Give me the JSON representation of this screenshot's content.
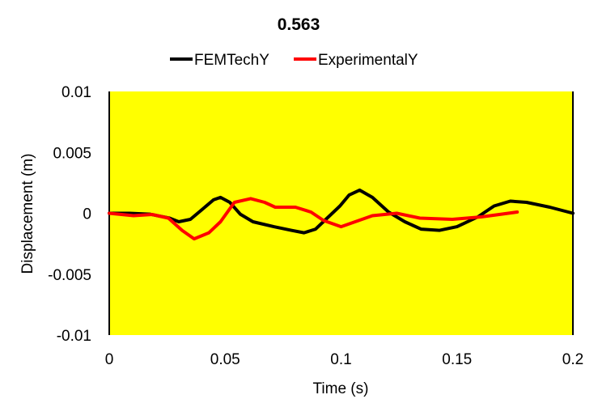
{
  "chart_data": {
    "type": "line",
    "title": "0.563",
    "xlabel": "Time (s)",
    "ylabel": "Displacement (m)",
    "xlim": [
      0,
      0.2
    ],
    "ylim": [
      -0.01,
      0.01
    ],
    "xticks": [
      "0",
      "0.05",
      "0.1",
      "0.15",
      "0.2"
    ],
    "yticks": [
      "0.01",
      "0.005",
      "0",
      "-0.005",
      "-0.01"
    ],
    "xtick_values": [
      0,
      0.05,
      0.1,
      0.15,
      0.2
    ],
    "ytick_values": [
      0.01,
      0.005,
      0,
      -0.005,
      -0.01
    ],
    "grid": false,
    "legend_position": "top",
    "plot_background": "#FFFF00",
    "series": [
      {
        "name": "FEMTechY",
        "color": "#000000",
        "x": [
          0,
          0.0087,
          0.0175,
          0.026,
          0.03,
          0.035,
          0.04,
          0.045,
          0.048,
          0.052,
          0.0565,
          0.062,
          0.071,
          0.0785,
          0.084,
          0.089,
          0.094,
          0.0995,
          0.1035,
          0.108,
          0.1135,
          0.1205,
          0.1275,
          0.1345,
          0.1425,
          0.15,
          0.159,
          0.166,
          0.173,
          0.18,
          0.19,
          0.2
        ],
        "y": [
          0,
          0,
          -7e-05,
          -0.0004,
          -0.0007,
          -0.0005,
          0.0003,
          0.0011,
          0.0013,
          0.0009,
          -7e-05,
          -0.0007,
          -0.0011,
          -0.0014,
          -0.0016,
          -0.0013,
          -0.0004,
          0.0006,
          0.0015,
          0.0019,
          0.0013,
          0.0001,
          -0.0007,
          -0.0013,
          -0.0014,
          -0.0011,
          -0.0003,
          0.0006,
          0.001,
          0.0009,
          0.0005,
          0
        ]
      },
      {
        "name": "ExperimentalY",
        "color": "#FF0000",
        "x": [
          0,
          0.0105,
          0.0185,
          0.0255,
          0.0314,
          0.0366,
          0.043,
          0.048,
          0.054,
          0.061,
          0.067,
          0.0716,
          0.0803,
          0.087,
          0.0925,
          0.1,
          0.1135,
          0.124,
          0.134,
          0.148,
          0.1605,
          0.176
        ],
        "y": [
          0,
          -0.0002,
          -0.0001,
          -0.0004,
          -0.0014,
          -0.0021,
          -0.0016,
          -0.0007,
          0.0009,
          0.0012,
          0.0009,
          0.0005,
          0.0005,
          0.0001,
          -0.0006,
          -0.0011,
          -0.0002,
          0,
          -0.0004,
          -0.0005,
          -0.0003,
          0.0001
        ]
      }
    ]
  }
}
